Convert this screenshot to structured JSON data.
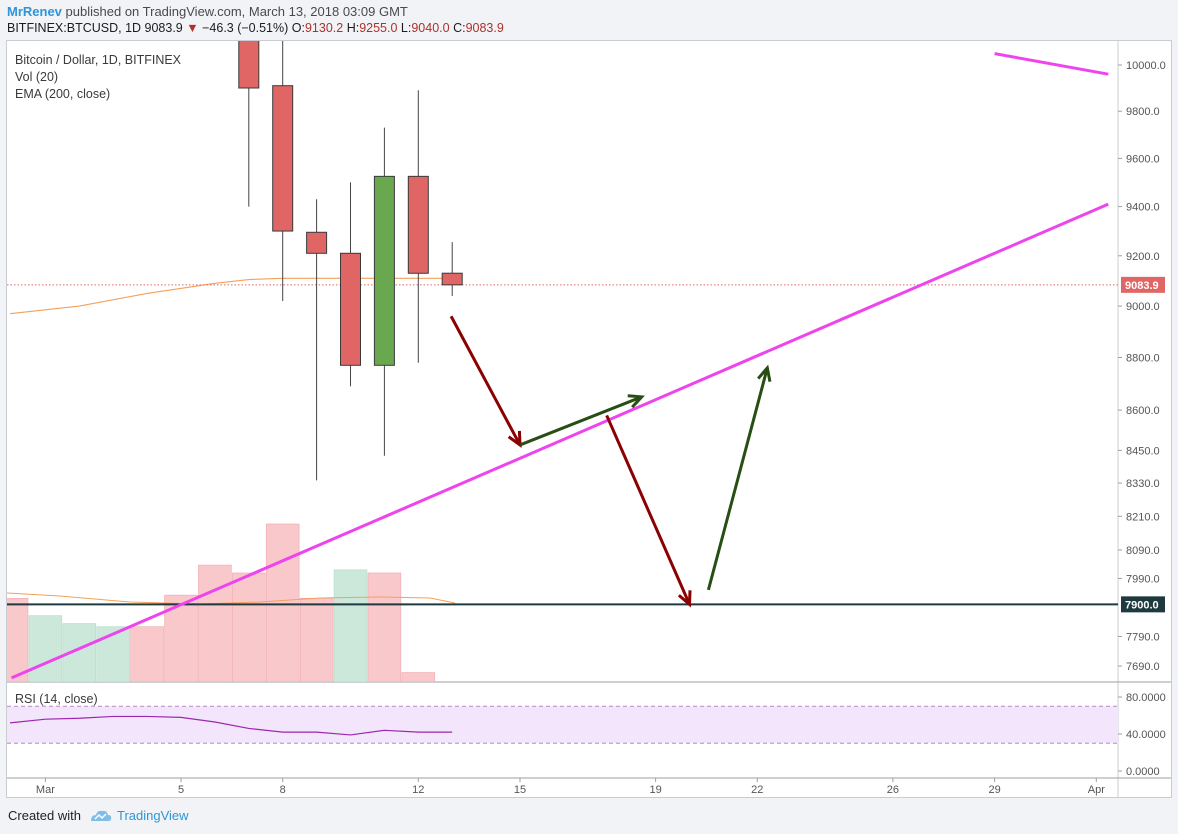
{
  "header": {
    "author": "MrRenev",
    "published_text": "published on TradingView.com, March 13, 2018 03:09 GMT",
    "symbol": "BITFINEX:BTCUSD, 1D",
    "last": "9083.9",
    "change": "−46.3 (−0.51%)",
    "o_label": "O:",
    "o_value": "9130.2",
    "h_label": "H:",
    "h_value": "9255.0",
    "l_label": "L:",
    "l_value": "9040.0",
    "c_label": "C:",
    "c_value": "9083.9"
  },
  "legend": {
    "series_title": "Bitcoin / Dollar, 1D, BITFINEX",
    "vol": "Vol (20)",
    "ema": "EMA (200, close)",
    "rsi": "RSI (14, close)"
  },
  "footer": {
    "created_with": "Created with",
    "brand": "TradingView"
  },
  "colors": {
    "up": "#6aa84f",
    "down": "#e06666",
    "vol_up": "#cbe8da",
    "vol_down": "#f8c8cb",
    "ema": "#f5a05a",
    "trendline": "#ee44ee",
    "support": "#1f3a3f",
    "arrow_down": "#8b0000",
    "arrow_up": "#274e13",
    "rsi_line": "#9c27b0",
    "rsi_band": "#f3e5fb",
    "price_marker": "#e06666"
  },
  "chart_data": {
    "type": "candlestick",
    "title": "Bitcoin / Dollar, 1D, BITFINEX",
    "x_ticks": [
      "Mar",
      "5",
      "8",
      "12",
      "15",
      "19",
      "22",
      "26",
      "29",
      "Apr"
    ],
    "y_ticks": [
      "10000.0",
      "9800.0",
      "9600.0",
      "9400.0",
      "9200.0",
      "9000.0",
      "8800.0",
      "8600.0",
      "8450.0",
      "8330.0",
      "8210.0",
      "8090.0",
      "7990.0",
      "7790.0",
      "7690.0"
    ],
    "price_scale": "log",
    "candles": [
      {
        "date": "Mar 7",
        "open": 10150,
        "high": 10250,
        "low": 9400,
        "close": 9900
      },
      {
        "date": "Mar 8",
        "open": 9910,
        "high": 10150,
        "low": 9020,
        "close": 9300
      },
      {
        "date": "Mar 9",
        "open": 9295,
        "high": 9430,
        "low": 8340,
        "close": 9210
      },
      {
        "date": "Mar 10",
        "open": 9210,
        "high": 9500,
        "low": 8690,
        "close": 8770
      },
      {
        "date": "Mar 11",
        "open": 8770,
        "high": 9730,
        "low": 8430,
        "close": 9525
      },
      {
        "date": "Mar 12",
        "open": 9525,
        "high": 9890,
        "low": 8780,
        "close": 9130
      },
      {
        "date": "Mar 13",
        "open": 9130.2,
        "high": 9255.0,
        "low": 9040.0,
        "close": 9083.9
      }
    ],
    "volume": {
      "name": "Vol (20)",
      "bars": [
        {
          "date": "Feb 28",
          "direction": "down",
          "rel": 0.53
        },
        {
          "date": "Mar 1",
          "direction": "up",
          "rel": 0.42
        },
        {
          "date": "Mar 2",
          "direction": "up",
          "rel": 0.37
        },
        {
          "date": "Mar 3",
          "direction": "up",
          "rel": 0.35
        },
        {
          "date": "Mar 4",
          "direction": "down",
          "rel": 0.35
        },
        {
          "date": "Mar 5",
          "direction": "down",
          "rel": 0.55
        },
        {
          "date": "Mar 6",
          "direction": "down",
          "rel": 0.74
        },
        {
          "date": "Mar 7",
          "direction": "down",
          "rel": 0.69
        },
        {
          "date": "Mar 8",
          "direction": "down",
          "rel": 1.0
        },
        {
          "date": "Mar 9",
          "direction": "down",
          "rel": 0.53
        },
        {
          "date": "Mar 10",
          "direction": "up",
          "rel": 0.71
        },
        {
          "date": "Mar 11",
          "direction": "down",
          "rel": 0.69
        },
        {
          "date": "Mar 12",
          "direction": "down",
          "rel": 0.06
        }
      ]
    },
    "ema": {
      "name": "EMA (200, close)",
      "points": [
        {
          "date": "Feb 28",
          "value": 8970
        },
        {
          "date": "Mar 2",
          "value": 9000
        },
        {
          "date": "Mar 4",
          "value": 9050
        },
        {
          "date": "Mar 6",
          "value": 9090
        },
        {
          "date": "Mar 7",
          "value": 9105
        },
        {
          "date": "Mar 8",
          "value": 9110
        },
        {
          "date": "Mar 13",
          "value": 9110
        }
      ]
    },
    "last_price": "9083.9",
    "support": {
      "value": 7900,
      "label": "7900.0"
    },
    "trendlines": [
      {
        "from": {
          "date": "Feb 28",
          "value": 7650
        },
        "to": {
          "date": "Apr 1",
          "value": 9410
        }
      },
      {
        "from": {
          "date": "Mar 29",
          "value": 10050
        },
        "to": {
          "date": "Apr 1",
          "value": 9960
        }
      }
    ],
    "projection_arrows": [
      {
        "direction": "down",
        "from": {
          "date": "Mar 14",
          "value": 8960
        },
        "to": {
          "date": "Mar 15",
          "value": 8470
        }
      },
      {
        "direction": "up",
        "from": {
          "date": "Mar 15",
          "value": 8470
        },
        "to": {
          "date": "Mar 18",
          "value": 8650
        }
      },
      {
        "direction": "down",
        "from": {
          "date": "Mar 18",
          "value": 8580
        },
        "to": {
          "date": "Mar 20",
          "value": 7900
        }
      },
      {
        "direction": "up",
        "from": {
          "date": "Mar 21",
          "value": 7950
        },
        "to": {
          "date": "Mar 22",
          "value": 8760
        }
      }
    ],
    "rsi": {
      "name": "RSI (14, close)",
      "y_ticks": [
        "80.0000",
        "40.0000",
        "0.0000"
      ],
      "upper_band": 70,
      "lower_band": 30,
      "points": [
        {
          "date": "Feb 28",
          "value": 52
        },
        {
          "date": "Mar 1",
          "value": 56
        },
        {
          "date": "Mar 2",
          "value": 57
        },
        {
          "date": "Mar 3",
          "value": 59
        },
        {
          "date": "Mar 4",
          "value": 59
        },
        {
          "date": "Mar 5",
          "value": 58
        },
        {
          "date": "Mar 6",
          "value": 53
        },
        {
          "date": "Mar 7",
          "value": 46
        },
        {
          "date": "Mar 8",
          "value": 42
        },
        {
          "date": "Mar 9",
          "value": 42
        },
        {
          "date": "Mar 10",
          "value": 39
        },
        {
          "date": "Mar 11",
          "value": 44
        },
        {
          "date": "Mar 12",
          "value": 42
        },
        {
          "date": "Mar 13",
          "value": 42
        }
      ]
    }
  }
}
